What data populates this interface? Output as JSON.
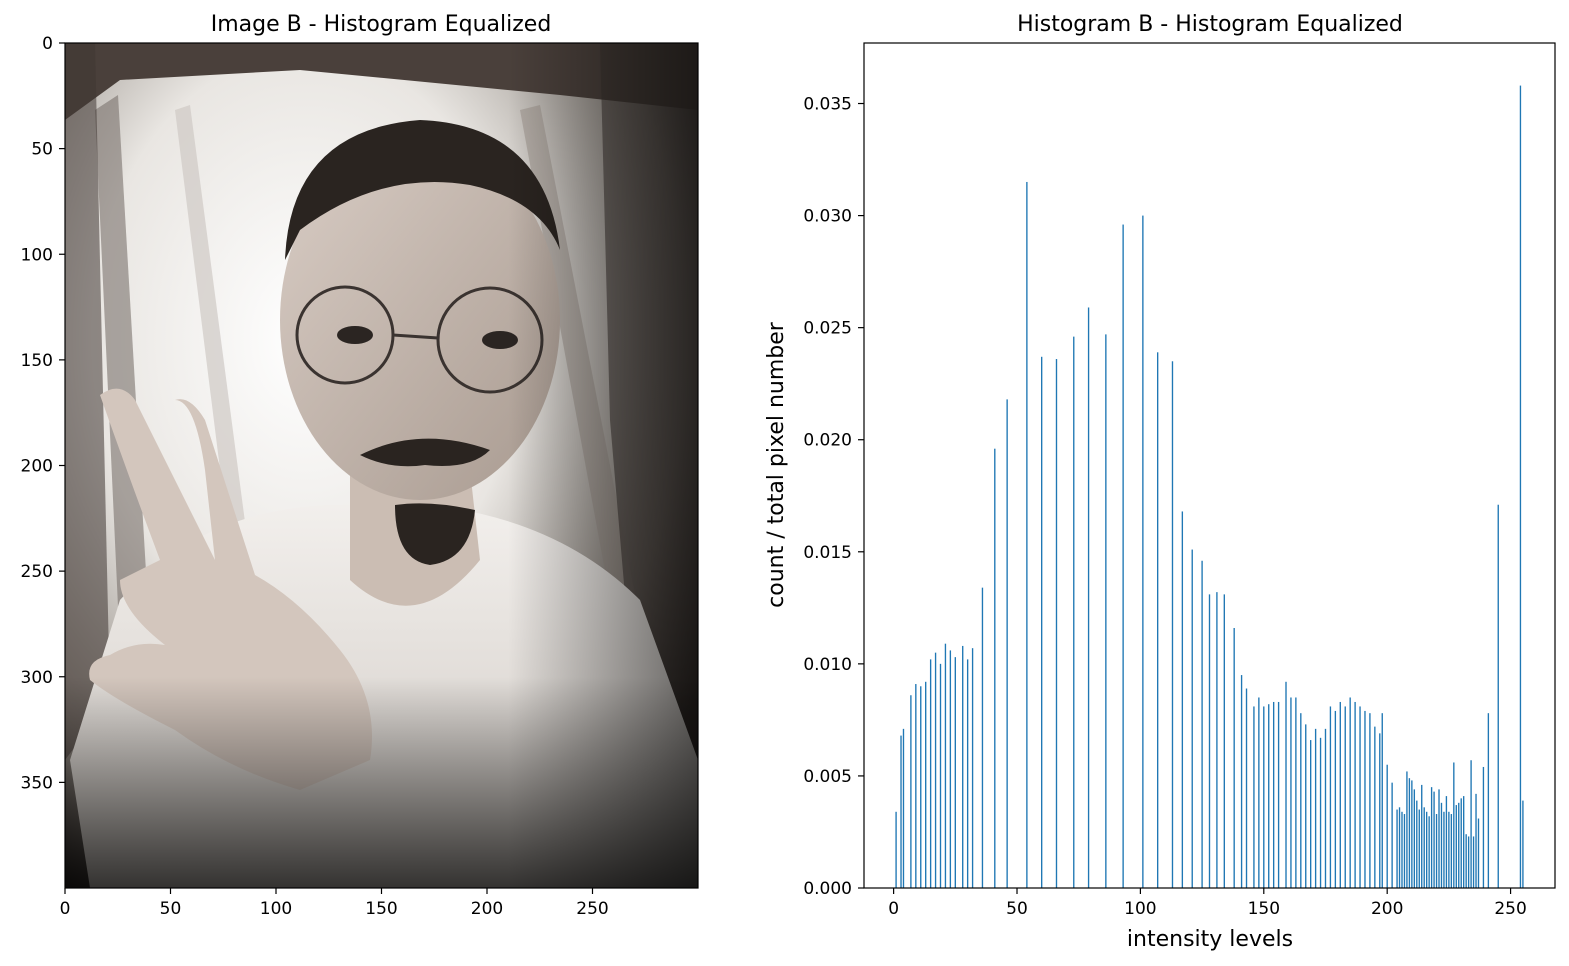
{
  "chart_data": [
    {
      "type": "image",
      "title": "Image B - Histogram Equalized",
      "xlim": [
        0,
        300
      ],
      "ylim": [
        400,
        0
      ],
      "x_ticks": [
        0,
        50,
        100,
        150,
        200,
        250
      ],
      "x_tick_labels": [
        "0",
        "50",
        "100",
        "150",
        "200",
        "250"
      ],
      "y_ticks": [
        0,
        50,
        100,
        150,
        200,
        250,
        300,
        350
      ],
      "y_tick_labels": [
        "0",
        "50",
        "100",
        "150",
        "200",
        "250",
        "300",
        "350"
      ]
    },
    {
      "type": "bar",
      "title": "Histogram B - Histogram Equalized",
      "xlabel": "intensity levels",
      "ylabel": "count / total pixel number",
      "xlim": [
        -12,
        268
      ],
      "ylim": [
        0,
        0.0377
      ],
      "x_ticks": [
        0,
        50,
        100,
        150,
        200,
        250
      ],
      "x_tick_labels": [
        "0",
        "50",
        "100",
        "150",
        "200",
        "250"
      ],
      "y_ticks": [
        0,
        0.005,
        0.01,
        0.015,
        0.02,
        0.025,
        0.03,
        0.035
      ],
      "y_tick_labels": [
        "0.000",
        "0.005",
        "0.010",
        "0.015",
        "0.020",
        "0.025",
        "0.030",
        "0.035"
      ],
      "bar_color": "#1f77b4",
      "x": [
        1,
        3,
        4,
        7,
        9,
        11,
        13,
        15,
        17,
        19,
        21,
        23,
        25,
        28,
        30,
        32,
        36,
        41,
        46,
        54,
        60,
        66,
        73,
        79,
        86,
        93,
        101,
        107,
        113,
        117,
        121,
        125,
        128,
        131,
        134,
        138,
        141,
        143,
        146,
        148,
        150,
        152,
        154,
        156,
        159,
        161,
        163,
        165,
        167,
        169,
        171,
        173,
        175,
        177,
        179,
        181,
        183,
        185,
        187,
        189,
        191,
        193,
        195,
        197,
        198,
        200,
        202,
        204,
        205,
        206,
        207,
        208,
        209,
        210,
        211,
        212,
        213,
        214,
        215,
        216,
        217,
        218,
        219,
        220,
        221,
        222,
        223,
        224,
        225,
        226,
        227,
        228,
        229,
        230,
        231,
        232,
        233,
        234,
        235,
        236,
        237,
        239,
        241,
        245,
        254,
        255
      ],
      "values": [
        0.0034,
        0.0068,
        0.0071,
        0.0086,
        0.0091,
        0.009,
        0.0092,
        0.0102,
        0.0105,
        0.01,
        0.0109,
        0.0106,
        0.0103,
        0.0108,
        0.0102,
        0.0107,
        0.0134,
        0.0196,
        0.0218,
        0.0315,
        0.0237,
        0.0236,
        0.0246,
        0.0259,
        0.0247,
        0.0296,
        0.03,
        0.0239,
        0.0235,
        0.0168,
        0.0151,
        0.0146,
        0.0131,
        0.0132,
        0.0131,
        0.0116,
        0.0095,
        0.0089,
        0.0081,
        0.0085,
        0.0081,
        0.0082,
        0.0083,
        0.0083,
        0.0092,
        0.0085,
        0.0085,
        0.0078,
        0.0073,
        0.0066,
        0.0071,
        0.0067,
        0.0071,
        0.0081,
        0.0079,
        0.0083,
        0.0081,
        0.0085,
        0.0083,
        0.0081,
        0.0079,
        0.0078,
        0.0072,
        0.0069,
        0.0078,
        0.0055,
        0.0047,
        0.0035,
        0.0036,
        0.0034,
        0.0033,
        0.0052,
        0.0049,
        0.0048,
        0.0044,
        0.0039,
        0.0035,
        0.0046,
        0.0036,
        0.0034,
        0.0032,
        0.0045,
        0.0043,
        0.0033,
        0.0044,
        0.0038,
        0.0034,
        0.0041,
        0.0034,
        0.0033,
        0.0056,
        0.0037,
        0.0038,
        0.004,
        0.0041,
        0.0024,
        0.0023,
        0.0057,
        0.0023,
        0.0042,
        0.0031,
        0.0054,
        0.0078,
        0.0171,
        0.0358,
        0.0039
      ]
    }
  ]
}
